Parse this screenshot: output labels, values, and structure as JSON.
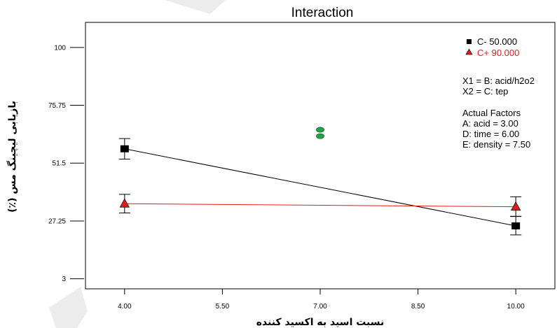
{
  "chart_data": {
    "type": "line",
    "title": "Interaction",
    "xlabel": "نسبت اسید به اکسید کننده",
    "ylabel": "بازیابی لیچینگ مس (٪)",
    "xlim": [
      3.4,
      10.6
    ],
    "ylim": [
      -1.2,
      110.5
    ],
    "x_ticks": [
      4,
      5.5,
      7,
      8.5,
      10
    ],
    "x_tick_labels": [
      "4.00",
      "5.50",
      "7.00",
      "8.50",
      "10.00"
    ],
    "y_ticks": [
      3,
      27.25,
      51.5,
      75.75,
      100
    ],
    "y_tick_labels": [
      "3",
      "27.25",
      "51.5",
      "75.75",
      "100"
    ],
    "grid": false,
    "legend_position": "top-right",
    "series": [
      {
        "name": "C- 50.000",
        "marker": "square",
        "color": "#000000",
        "x": [
          4,
          10
        ],
        "y": [
          57.5,
          25.2
        ],
        "error_bars": [
          {
            "x": 4,
            "low": 53.2,
            "high": 61.8
          },
          {
            "x": 10,
            "low": 21.4,
            "high": 29.2
          }
        ]
      },
      {
        "name": "C+ 90.000",
        "marker": "triangle",
        "color": "#e31a1c",
        "x": [
          4,
          10
        ],
        "y": [
          34.5,
          33.2
        ],
        "error_bars": [
          {
            "x": 4,
            "low": 30.6,
            "high": 38.4
          },
          {
            "x": 10,
            "low": 29.1,
            "high": 37.4
          }
        ]
      }
    ],
    "center_points": {
      "color": "#22a14b",
      "points": [
        {
          "x": 7,
          "y": 65.5
        },
        {
          "x": 7,
          "y": 62.8
        }
      ]
    },
    "annotations": [
      "X1 = B: acid/h2o2",
      "X2 = C: tep"
    ],
    "actual_factors": {
      "heading": "Actual Factors",
      "items": [
        "A: acid = 3.00",
        "D: time = 6.00",
        "E: density = 7.50"
      ]
    }
  }
}
